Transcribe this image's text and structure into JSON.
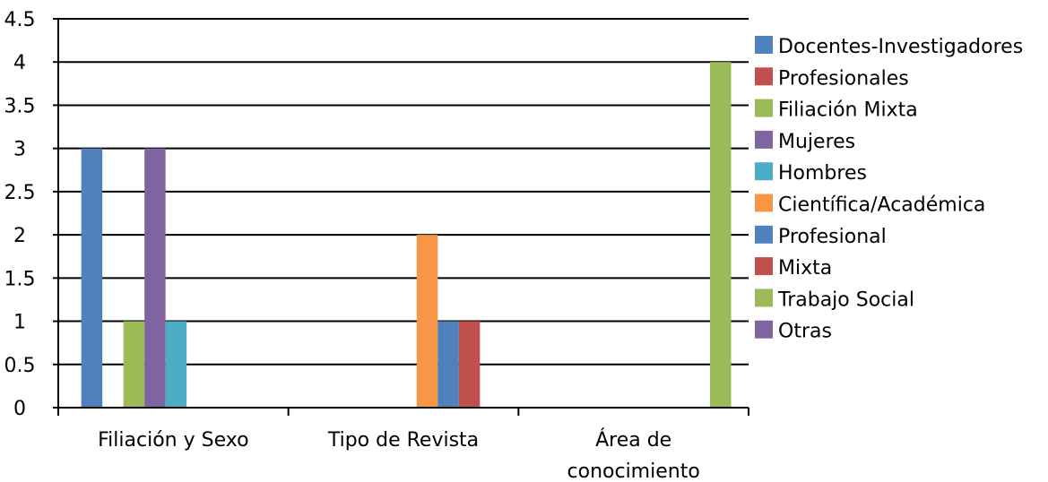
{
  "chart_data": {
    "type": "bar",
    "categories": [
      [
        "Filiación y Sexo"
      ],
      [
        "Tipo de Revista"
      ],
      [
        "Área de",
        "conocimiento"
      ]
    ],
    "ylim": [
      0,
      4.5
    ],
    "yticks": [
      "0",
      "0.5",
      "1",
      "1.5",
      "2",
      "2.5",
      "3",
      "3.5",
      "4",
      "4.5"
    ],
    "grid": true,
    "legend_position": "right",
    "series": [
      {
        "name": "Docentes-Investigadores",
        "color": "#4f81bd",
        "values": [
          3,
          null,
          null
        ]
      },
      {
        "name": "Profesionales",
        "color": "#c0504d",
        "values": [
          0,
          null,
          null
        ]
      },
      {
        "name": "Filiación Mixta",
        "color": "#9bbb59",
        "values": [
          1,
          null,
          null
        ]
      },
      {
        "name": "Mujeres",
        "color": "#8064a2",
        "values": [
          3,
          null,
          null
        ]
      },
      {
        "name": "Hombres",
        "color": "#4bacc6",
        "values": [
          1,
          null,
          null
        ]
      },
      {
        "name": "Científica/Académica",
        "color": "#f79646",
        "values": [
          null,
          2,
          null
        ]
      },
      {
        "name": "Profesional",
        "color": "#4f81bd",
        "values": [
          null,
          1,
          null
        ]
      },
      {
        "name": "Mixta",
        "color": "#c0504d",
        "values": [
          null,
          1,
          null
        ]
      },
      {
        "name": "Trabajo Social",
        "color": "#9bbb59",
        "values": [
          null,
          null,
          4
        ]
      },
      {
        "name": "Otras",
        "color": "#8064a2",
        "values": [
          null,
          null,
          0
        ]
      }
    ]
  }
}
